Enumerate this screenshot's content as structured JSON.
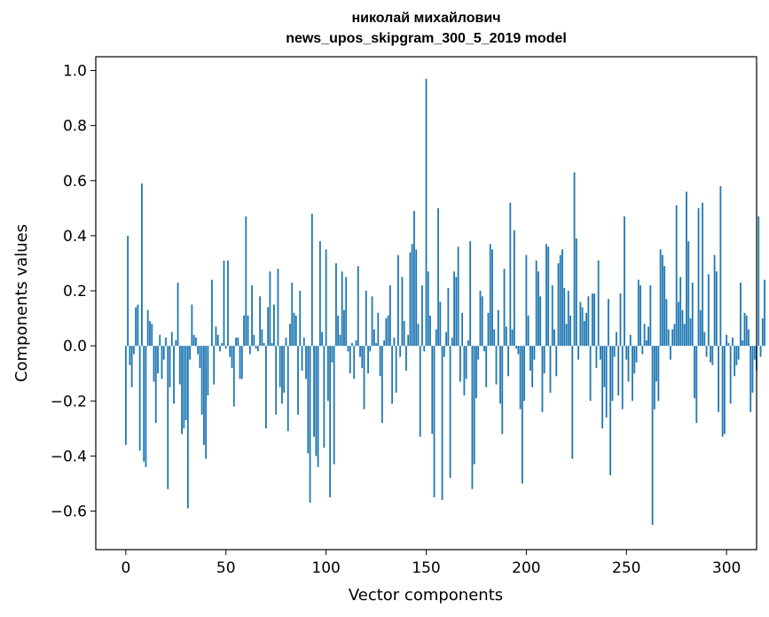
{
  "chart_data": {
    "type": "bar",
    "title_lines": [
      "николай михайлович",
      "news_upos_skipgram_300_5_2019 model"
    ],
    "xlabel": "Vector components",
    "ylabel": "Components values",
    "xlim": [
      -15,
      315
    ],
    "ylim": [
      -0.74,
      1.05
    ],
    "xticks": [
      0,
      50,
      100,
      150,
      200,
      250,
      300
    ],
    "xtick_labels": [
      "0",
      "50",
      "100",
      "150",
      "200",
      "250",
      "300"
    ],
    "yticks": [
      -0.6,
      -0.4,
      -0.2,
      0.0,
      0.2,
      0.4,
      0.6,
      0.8,
      1.0
    ],
    "ytick_labels": [
      "−0.6",
      "−0.4",
      "−0.2",
      "0.0",
      "0.2",
      "0.4",
      "0.6",
      "0.8",
      "1.0"
    ],
    "bar_color": "#1f77b4",
    "values": [
      -0.36,
      0.4,
      -0.07,
      -0.15,
      -0.03,
      0.14,
      0.15,
      -0.38,
      0.59,
      -0.42,
      -0.44,
      0.13,
      0.09,
      0.08,
      -0.13,
      -0.28,
      -0.1,
      0.04,
      -0.12,
      -0.05,
      0.03,
      -0.52,
      -0.15,
      0.05,
      -0.21,
      0.02,
      0.23,
      -0.14,
      -0.32,
      -0.3,
      -0.27,
      -0.59,
      -0.05,
      0.15,
      0.04,
      0.03,
      -0.03,
      -0.08,
      -0.25,
      -0.36,
      -0.41,
      -0.18,
      0.0,
      0.24,
      -0.14,
      0.07,
      0.04,
      -0.02,
      0.01,
      0.31,
      -0.01,
      0.31,
      -0.04,
      -0.08,
      -0.22,
      0.03,
      0.03,
      -0.12,
      -0.12,
      0.11,
      0.47,
      0.11,
      -0.03,
      0.22,
      0.04,
      -0.01,
      -0.02,
      0.18,
      0.06,
      0.01,
      -0.3,
      0.14,
      0.27,
      0.01,
      0.15,
      -0.25,
      0.28,
      -0.15,
      -0.21,
      -0.17,
      0.03,
      -0.31,
      0.08,
      0.23,
      0.12,
      0.11,
      -0.25,
      0.2,
      -0.09,
      0.03,
      -0.12,
      -0.39,
      -0.57,
      0.48,
      -0.33,
      -0.4,
      -0.44,
      0.38,
      0.05,
      -0.37,
      0.35,
      -0.2,
      -0.55,
      -0.06,
      -0.43,
      0.3,
      0.11,
      0.04,
      0.27,
      0.13,
      0.25,
      -0.02,
      -0.1,
      0.01,
      -0.12,
      0.02,
      0.29,
      -0.04,
      -0.08,
      -0.23,
      0.2,
      -0.1,
      -0.02,
      0.18,
      0.06,
      0.01,
      0.12,
      -0.11,
      -0.28,
      0.02,
      0.1,
      0.11,
      0.22,
      -0.21,
      0.03,
      -0.17,
      0.33,
      -0.04,
      0.25,
      0.09,
      -0.09,
      0.04,
      0.34,
      0.37,
      0.49,
      0.35,
      0.08,
      -0.33,
      0.22,
      -0.02,
      0.97,
      0.27,
      0.11,
      -0.32,
      -0.55,
      0.06,
      0.5,
      0.16,
      -0.56,
      -0.04,
      0.05,
      0.21,
      -0.48,
      0.03,
      0.27,
      0.25,
      0.36,
      -0.13,
      0.12,
      -0.18,
      -0.12,
      0.02,
      0.38,
      -0.52,
      -0.43,
      -0.19,
      -0.05,
      0.2,
      0.18,
      -0.02,
      -0.15,
      0.12,
      0.37,
      0.35,
      0.06,
      -0.14,
      0.13,
      -0.21,
      -0.32,
      0.28,
      0.07,
      -0.11,
      0.52,
      0.06,
      0.42,
      -0.01,
      -0.03,
      -0.23,
      -0.5,
      -0.2,
      0.33,
      0.11,
      -0.09,
      -0.15,
      -0.05,
      0.31,
      0.27,
      0.18,
      -0.24,
      -0.1,
      0.37,
      0.36,
      -0.17,
      0.22,
      0.06,
      -0.11,
      0.3,
      0.33,
      0.35,
      0.21,
      0.08,
      0.2,
      0.11,
      -0.41,
      0.63,
      0.39,
      -0.05,
      0.16,
      0.14,
      0.09,
      0.12,
      0.18,
      -0.2,
      0.19,
      0.19,
      -0.08,
      0.31,
      -0.05,
      -0.3,
      -0.15,
      -0.26,
      0.17,
      -0.47,
      -0.2,
      -0.04,
      0.05,
      -0.18,
      0.19,
      -0.23,
      0.47,
      -0.05,
      -0.13,
      0.04,
      -0.2,
      -0.1,
      -0.06,
      0.24,
      0.22,
      -0.03,
      0.08,
      0.02,
      0.07,
      0.22,
      -0.65,
      -0.23,
      -0.13,
      -0.2,
      0.35,
      0.33,
      0.29,
      0.17,
      0.06,
      -0.05,
      0.06,
      0.08,
      0.51,
      0.16,
      0.25,
      0.13,
      0.08,
      0.56,
      0.38,
      0.1,
      0.23,
      -0.19,
      -0.28,
      0.5,
      0.13,
      0.52,
      0.05,
      -0.04,
      0.26,
      -0.06,
      -0.07,
      0.33,
      0.27,
      -0.24,
      0.58,
      -0.33,
      -0.32,
      0.04,
      0.01,
      -0.21,
      0.03,
      -0.11,
      -0.07,
      -0.05,
      0.23,
      0.02,
      0.12,
      0.11,
      0.06,
      -0.24,
      -0.17,
      -0.05,
      -0.09,
      0.47,
      -0.04,
      0.1,
      0.24
    ]
  }
}
